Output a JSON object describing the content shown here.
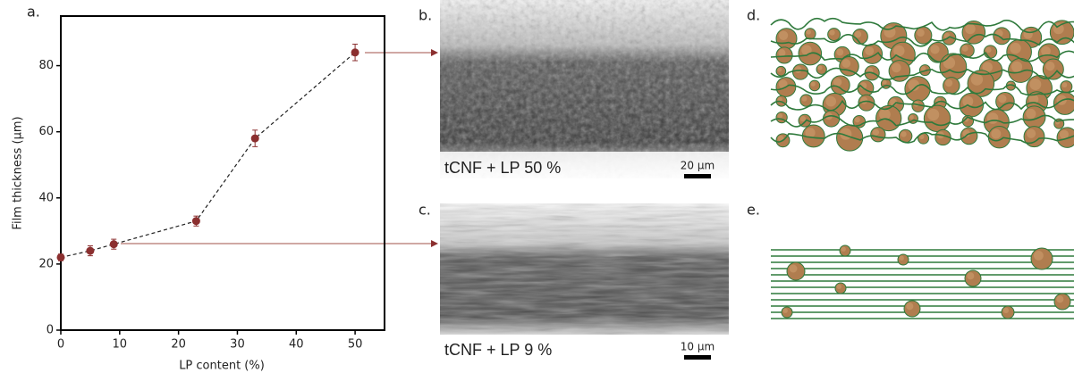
{
  "chart_data": {
    "type": "scatter",
    "panel_label": "a.",
    "xlabel": "LP content (%)",
    "ylabel": "Film thickness (µm)",
    "x": [
      0,
      5,
      9,
      23,
      33,
      50
    ],
    "series": [
      {
        "color": "#8b2f2f",
        "values": [
          22,
          24,
          26,
          33,
          58,
          84
        ],
        "errors": [
          1,
          1.5,
          1.5,
          1.5,
          2.5,
          2.5
        ]
      }
    ],
    "line_style": "dashed",
    "xlim": [
      0,
      55
    ],
    "ylim": [
      0,
      95
    ],
    "xticks": [
      0,
      10,
      20,
      30,
      40,
      50
    ],
    "yticks": [
      0,
      20,
      40,
      60,
      80
    ]
  },
  "panels": [
    {
      "label": "b.",
      "caption": "tCNF + LP 50 %",
      "scale_bar": "20 µm"
    },
    {
      "label": "c.",
      "caption": "tCNF + LP 9 %",
      "scale_bar": "10 µm"
    },
    {
      "label": "d."
    },
    {
      "label": "e."
    }
  ]
}
